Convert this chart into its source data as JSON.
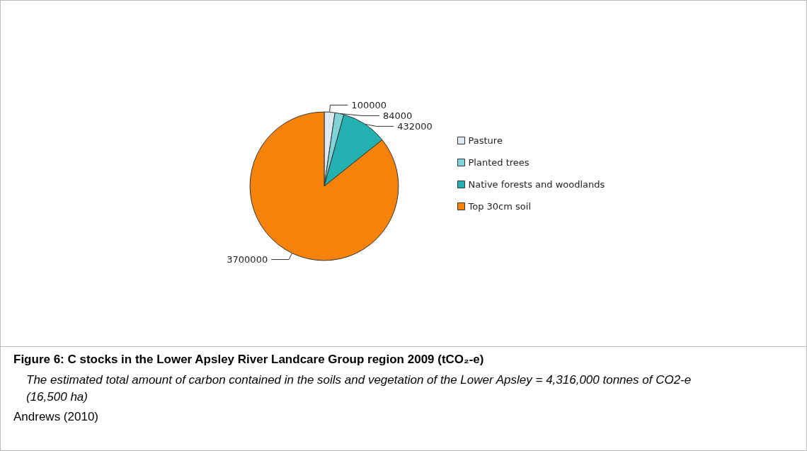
{
  "chart_data": {
    "type": "pie",
    "title": "Figure 6: C stocks in the Lower Apsley River Landcare Group region 2009 (tCO₂-e)",
    "categories": [
      "Pasture",
      "Planted trees",
      "Native forests and woodlands",
      "Top 30cm soil"
    ],
    "values": [
      100000,
      84000,
      432000,
      3700000
    ],
    "colors": [
      "#dce9f0",
      "#80d4d8",
      "#22b0b0",
      "#f5820a"
    ],
    "data_labels": true,
    "legend": "right",
    "annotations": [
      "The estimated total amount of carbon contained in the soils and vegetation of the Lower Apsley = 4,316,000 tonnes of CO2-e (16,500 ha)",
      "Andrews (2010)"
    ]
  }
}
